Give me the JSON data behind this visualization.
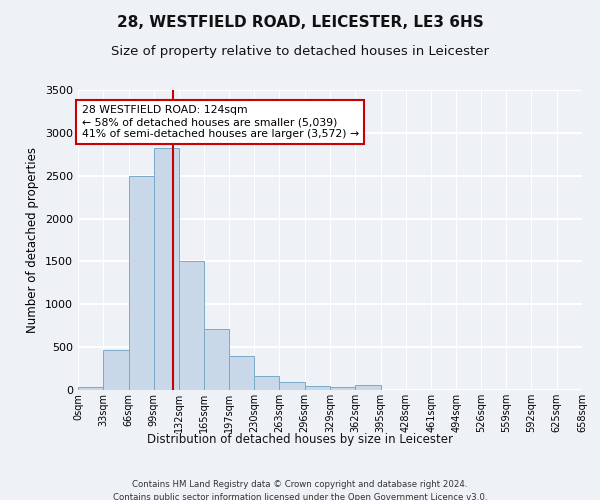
{
  "title1": "28, WESTFIELD ROAD, LEICESTER, LE3 6HS",
  "title2": "Size of property relative to detached houses in Leicester",
  "xlabel": "Distribution of detached houses by size in Leicester",
  "ylabel": "Number of detached properties",
  "bin_labels": [
    "0sqm",
    "33sqm",
    "66sqm",
    "99sqm",
    "132sqm",
    "165sqm",
    "197sqm",
    "230sqm",
    "263sqm",
    "296sqm",
    "329sqm",
    "362sqm",
    "395sqm",
    "428sqm",
    "461sqm",
    "494sqm",
    "526sqm",
    "559sqm",
    "592sqm",
    "625sqm",
    "658sqm"
  ],
  "bin_edges": [
    0,
    33,
    66,
    99,
    132,
    165,
    197,
    230,
    263,
    296,
    329,
    362,
    395,
    428,
    461,
    494,
    526,
    559,
    592,
    625,
    658
  ],
  "bar_heights": [
    30,
    470,
    2500,
    2820,
    1510,
    710,
    400,
    160,
    90,
    50,
    30,
    60,
    0,
    0,
    0,
    0,
    0,
    0,
    0,
    0
  ],
  "bar_color": "#c8d8e8",
  "bar_edge_color": "#7aaac8",
  "property_value": 124,
  "vline_color": "#cc0000",
  "annotation_text": "28 WESTFIELD ROAD: 124sqm\n← 58% of detached houses are smaller (5,039)\n41% of semi-detached houses are larger (3,572) →",
  "annotation_box_color": "#ffffff",
  "annotation_box_edge_color": "#cc0000",
  "ylim": [
    0,
    3500
  ],
  "yticks": [
    0,
    500,
    1000,
    1500,
    2000,
    2500,
    3000,
    3500
  ],
  "footer1": "Contains HM Land Registry data © Crown copyright and database right 2024.",
  "footer2": "Contains public sector information licensed under the Open Government Licence v3.0.",
  "bg_color": "#eef2f7",
  "plot_bg_color": "#eef2f7",
  "grid_color": "#ffffff",
  "title1_fontsize": 11,
  "title2_fontsize": 9.5
}
